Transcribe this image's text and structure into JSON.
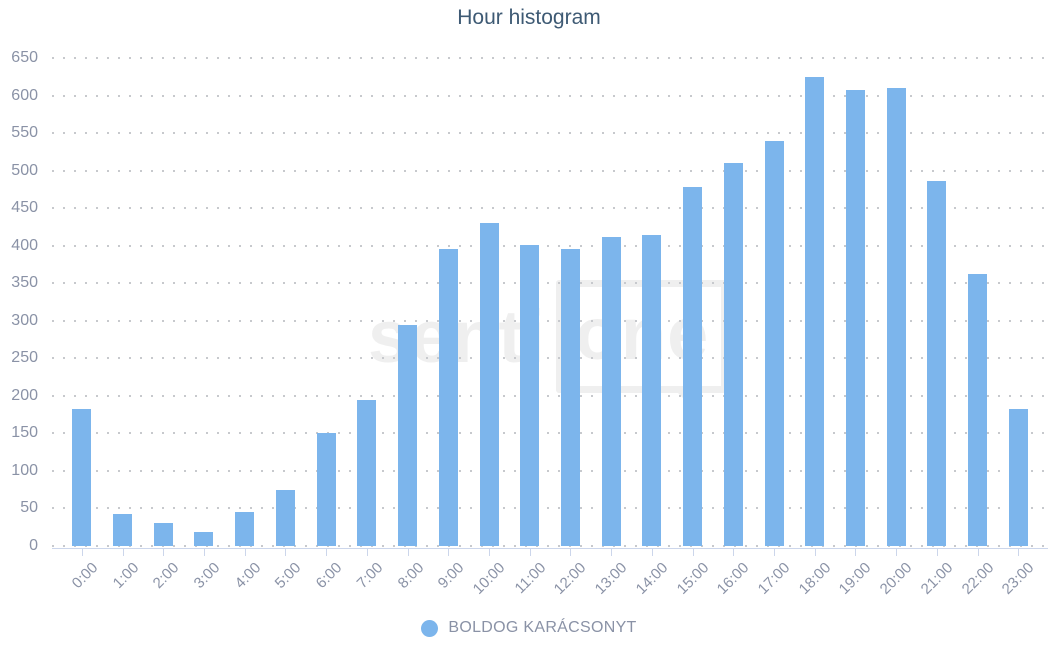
{
  "chart_data": {
    "type": "bar",
    "title": "Hour histogram",
    "categories": [
      "0:00",
      "1:00",
      "2:00",
      "3:00",
      "4:00",
      "5:00",
      "6:00",
      "7:00",
      "8:00",
      "9:00",
      "10:00",
      "11:00",
      "12:00",
      "13:00",
      "14:00",
      "15:00",
      "16:00",
      "17:00",
      "18:00",
      "19:00",
      "20:00",
      "21:00",
      "22:00",
      "23:00"
    ],
    "series": [
      {
        "name": "BOLDOG KARÁCSONYT",
        "values": [
          182,
          42,
          30,
          19,
          45,
          74,
          150,
          195,
          294,
          396,
          430,
          401,
          396,
          412,
          414,
          478,
          510,
          540,
          625,
          607,
          610,
          486,
          362,
          183
        ]
      }
    ],
    "xlabel": "",
    "ylabel": "",
    "ylim": [
      0,
      650
    ],
    "ytick_step": 50,
    "grid": "horizontal-dotted",
    "legend_position": "bottom-center",
    "colors": {
      "bar": "#7cb5ec",
      "title": "#3e5a74",
      "axis_label": "#8a92a6",
      "grid_dot": "#c7c9cd",
      "axis_line": "#ccd6eb",
      "watermark": "#efefef"
    }
  },
  "watermark": {
    "text_left": "senti",
    "text_boxed": "one"
  }
}
